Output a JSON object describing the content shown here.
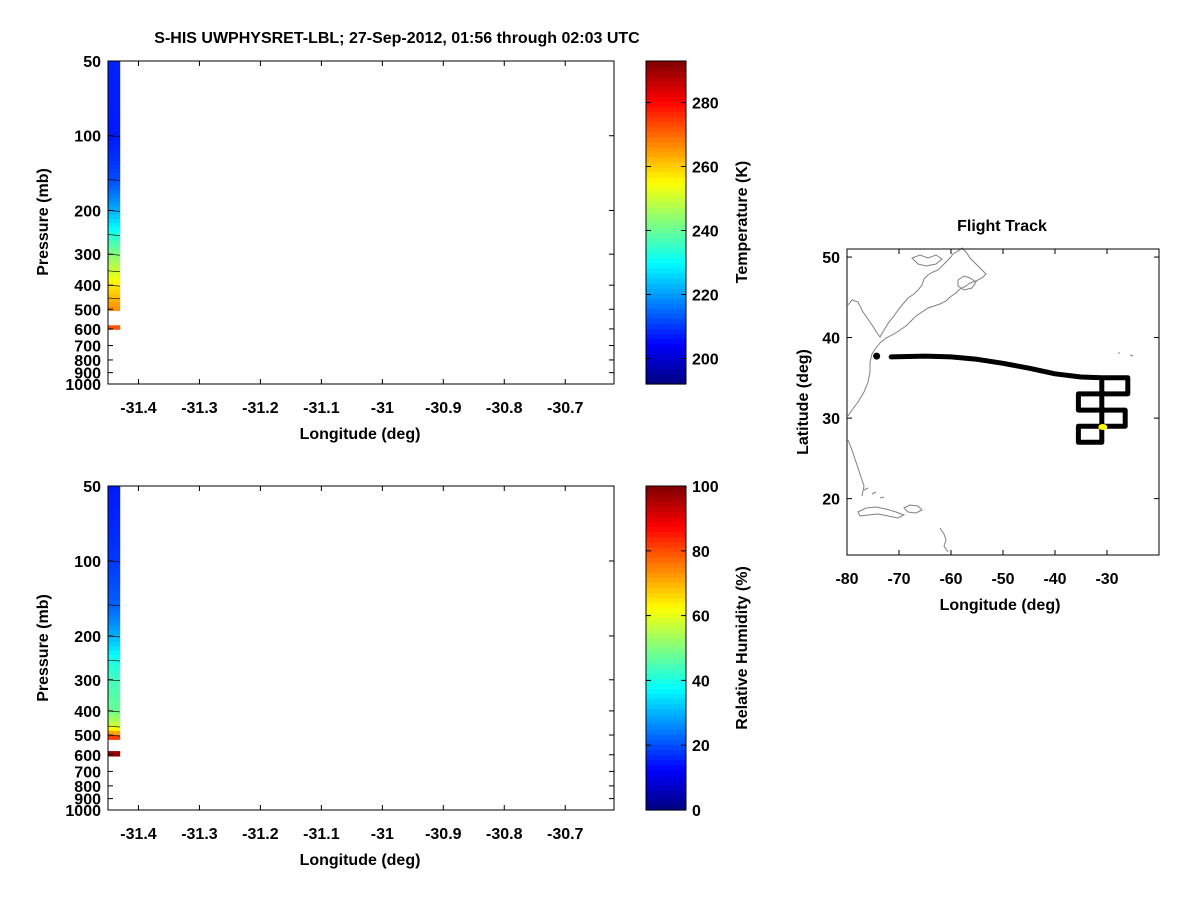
{
  "title": "S-HIS UWPHYSRET-LBL;   27-Sep-2012, 01:56 through 02:03 UTC",
  "colors": {
    "jet_low": "#000080",
    "jet_high": "#800000",
    "track": "#000000",
    "current_position": "#ffff00",
    "coastline": "#808080"
  },
  "chart_data": [
    {
      "type": "heatmap",
      "id": "temperature-profile",
      "xlabel": "Longitude (deg)",
      "ylabel": "Pressure (mb)",
      "xlim": [
        -31.45,
        -30.62
      ],
      "ylim": [
        50,
        1000
      ],
      "y_scale": "log",
      "y_reversed": true,
      "x_ticks": [
        -31.4,
        -31.3,
        -31.2,
        -31.1,
        -31,
        -30.9,
        -30.8,
        -30.7
      ],
      "y_ticks": [
        50,
        100,
        200,
        300,
        400,
        500,
        600,
        700,
        800,
        900,
        1000
      ],
      "profile_longitude_range": [
        -31.45,
        -31.43
      ],
      "profile": [
        {
          "p": 50,
          "value": 208
        },
        {
          "p": 100,
          "value": 207
        },
        {
          "p": 150,
          "value": 212
        },
        {
          "p": 200,
          "value": 222
        },
        {
          "p": 250,
          "value": 233
        },
        {
          "p": 300,
          "value": 243
        },
        {
          "p": 350,
          "value": 250
        },
        {
          "p": 400,
          "value": 257
        },
        {
          "p": 450,
          "value": 262
        },
        {
          "p": 505,
          "value": 267
        }
      ],
      "extra_band": {
        "p_range": [
          580,
          605
        ],
        "value": 272
      },
      "colorbar": {
        "label": "Temperature (K)",
        "range": [
          192,
          293
        ],
        "ticks": [
          200,
          220,
          240,
          260,
          280
        ]
      }
    },
    {
      "type": "heatmap",
      "id": "humidity-profile",
      "xlabel": "Longitude (deg)",
      "ylabel": "Pressure (mb)",
      "xlim": [
        -31.45,
        -30.62
      ],
      "ylim": [
        50,
        1000
      ],
      "y_scale": "log",
      "y_reversed": true,
      "x_ticks": [
        -31.4,
        -31.3,
        -31.2,
        -31.1,
        -31,
        -30.9,
        -30.8,
        -30.7
      ],
      "y_ticks": [
        50,
        100,
        200,
        300,
        400,
        500,
        600,
        700,
        800,
        900,
        1000
      ],
      "profile_longitude_range": [
        -31.45,
        -31.43
      ],
      "profile": [
        {
          "p": 50,
          "value": 15
        },
        {
          "p": 100,
          "value": 18
        },
        {
          "p": 150,
          "value": 22
        },
        {
          "p": 200,
          "value": 30
        },
        {
          "p": 250,
          "value": 40
        },
        {
          "p": 300,
          "value": 44
        },
        {
          "p": 400,
          "value": 48
        },
        {
          "p": 460,
          "value": 58
        },
        {
          "p": 500,
          "value": 75
        },
        {
          "p": 520,
          "value": 88
        }
      ],
      "extra_band": {
        "p_range": [
          580,
          610
        ],
        "value": 98
      },
      "colorbar": {
        "label": "Relative Humidity (%)",
        "range": [
          0,
          100
        ],
        "ticks": [
          0,
          20,
          40,
          60,
          80,
          100
        ]
      }
    },
    {
      "type": "scatter",
      "id": "flight-track",
      "title": "Flight Track",
      "xlabel": "Longitude (deg)",
      "ylabel": "Latitude (deg)",
      "xlim": [
        -80,
        -20
      ],
      "ylim": [
        13,
        51
      ],
      "x_ticks": [
        -80,
        -70,
        -60,
        -50,
        -40,
        -30
      ],
      "y_ticks": [
        20,
        30,
        40,
        50
      ],
      "track": [
        [
          -71.5,
          37.6
        ],
        [
          -65,
          37.7
        ],
        [
          -60,
          37.6
        ],
        [
          -55,
          37.3
        ],
        [
          -50,
          36.8
        ],
        [
          -45,
          36.2
        ],
        [
          -40,
          35.5
        ],
        [
          -35,
          35.1
        ],
        [
          -31,
          35.0
        ],
        [
          -26,
          35.0
        ],
        [
          -26,
          33.0
        ],
        [
          -31,
          33.0
        ],
        [
          -35.5,
          33.0
        ],
        [
          -35.5,
          31.0
        ],
        [
          -31,
          31.0
        ],
        [
          -26.5,
          31.0
        ],
        [
          -26.5,
          29.0
        ],
        [
          -31,
          29.0
        ],
        [
          -35.5,
          29.0
        ],
        [
          -35.5,
          27.0
        ],
        [
          -31,
          27.0
        ],
        [
          -31,
          35.0
        ]
      ],
      "start_marker": [
        -74.3,
        37.7
      ],
      "current_position": [
        -30.8,
        28.9
      ]
    }
  ]
}
